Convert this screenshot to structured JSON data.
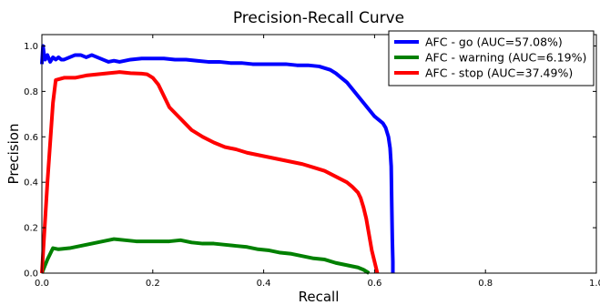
{
  "chart_data": {
    "type": "line",
    "title": "Precision-Recall Curve",
    "xlabel": "Recall",
    "ylabel": "Precision",
    "xlim": [
      0.0,
      1.0
    ],
    "ylim": [
      0.0,
      1.05
    ],
    "xticks": [
      "0.0",
      "0.2",
      "0.4",
      "0.6",
      "0.8",
      "1.0"
    ],
    "yticks": [
      "0.0",
      "0.2",
      "0.4",
      "0.6",
      "0.8",
      "1.0"
    ],
    "grid": false,
    "legend_position": "top-right",
    "series": [
      {
        "name": "AFC - go (AUC=57.08%)",
        "color": "#0000ff",
        "x": [
          0.0,
          0.002,
          0.004,
          0.006,
          0.01,
          0.015,
          0.02,
          0.025,
          0.03,
          0.035,
          0.04,
          0.05,
          0.06,
          0.07,
          0.08,
          0.09,
          0.1,
          0.11,
          0.12,
          0.13,
          0.14,
          0.16,
          0.18,
          0.2,
          0.22,
          0.24,
          0.26,
          0.28,
          0.3,
          0.32,
          0.34,
          0.36,
          0.38,
          0.4,
          0.42,
          0.44,
          0.46,
          0.48,
          0.5,
          0.52,
          0.53,
          0.54,
          0.55,
          0.56,
          0.57,
          0.58,
          0.59,
          0.6,
          0.61,
          0.615,
          0.62,
          0.625,
          0.628,
          0.63,
          0.631,
          0.632,
          0.633,
          0.633
        ],
        "y": [
          0.92,
          1.0,
          0.96,
          0.94,
          0.96,
          0.93,
          0.95,
          0.94,
          0.95,
          0.94,
          0.94,
          0.95,
          0.96,
          0.96,
          0.95,
          0.96,
          0.95,
          0.94,
          0.93,
          0.935,
          0.93,
          0.94,
          0.945,
          0.945,
          0.945,
          0.94,
          0.94,
          0.935,
          0.93,
          0.93,
          0.925,
          0.925,
          0.92,
          0.92,
          0.92,
          0.92,
          0.915,
          0.915,
          0.91,
          0.895,
          0.88,
          0.86,
          0.84,
          0.81,
          0.78,
          0.75,
          0.72,
          0.69,
          0.67,
          0.66,
          0.64,
          0.6,
          0.55,
          0.47,
          0.3,
          0.15,
          0.05,
          0.0
        ]
      },
      {
        "name": "AFC - warning (AUC=6.19%)",
        "color": "#008000",
        "x": [
          0.0,
          0.005,
          0.01,
          0.02,
          0.03,
          0.05,
          0.07,
          0.09,
          0.11,
          0.13,
          0.15,
          0.17,
          0.19,
          0.21,
          0.23,
          0.25,
          0.27,
          0.29,
          0.31,
          0.33,
          0.35,
          0.37,
          0.39,
          0.41,
          0.43,
          0.45,
          0.47,
          0.49,
          0.51,
          0.53,
          0.55,
          0.57,
          0.58,
          0.59
        ],
        "y": [
          0.0,
          0.03,
          0.06,
          0.11,
          0.105,
          0.11,
          0.12,
          0.13,
          0.14,
          0.15,
          0.145,
          0.14,
          0.14,
          0.14,
          0.14,
          0.145,
          0.135,
          0.13,
          0.13,
          0.125,
          0.12,
          0.115,
          0.105,
          0.1,
          0.09,
          0.085,
          0.075,
          0.065,
          0.06,
          0.045,
          0.035,
          0.025,
          0.015,
          0.0
        ]
      },
      {
        "name": "AFC - stop (AUC=37.49%)",
        "color": "#ff0000",
        "x": [
          0.0,
          0.01,
          0.02,
          0.025,
          0.04,
          0.06,
          0.08,
          0.1,
          0.12,
          0.14,
          0.16,
          0.18,
          0.19,
          0.2,
          0.21,
          0.22,
          0.23,
          0.25,
          0.27,
          0.29,
          0.31,
          0.33,
          0.35,
          0.37,
          0.39,
          0.41,
          0.43,
          0.45,
          0.47,
          0.49,
          0.51,
          0.53,
          0.55,
          0.56,
          0.57,
          0.575,
          0.58,
          0.585,
          0.59,
          0.595,
          0.6,
          0.605
        ],
        "y": [
          0.0,
          0.4,
          0.75,
          0.85,
          0.86,
          0.86,
          0.87,
          0.875,
          0.88,
          0.885,
          0.88,
          0.878,
          0.875,
          0.86,
          0.83,
          0.78,
          0.73,
          0.68,
          0.63,
          0.6,
          0.575,
          0.555,
          0.545,
          0.53,
          0.52,
          0.51,
          0.5,
          0.49,
          0.48,
          0.465,
          0.45,
          0.425,
          0.4,
          0.38,
          0.355,
          0.33,
          0.29,
          0.24,
          0.17,
          0.1,
          0.05,
          0.0
        ]
      }
    ]
  }
}
